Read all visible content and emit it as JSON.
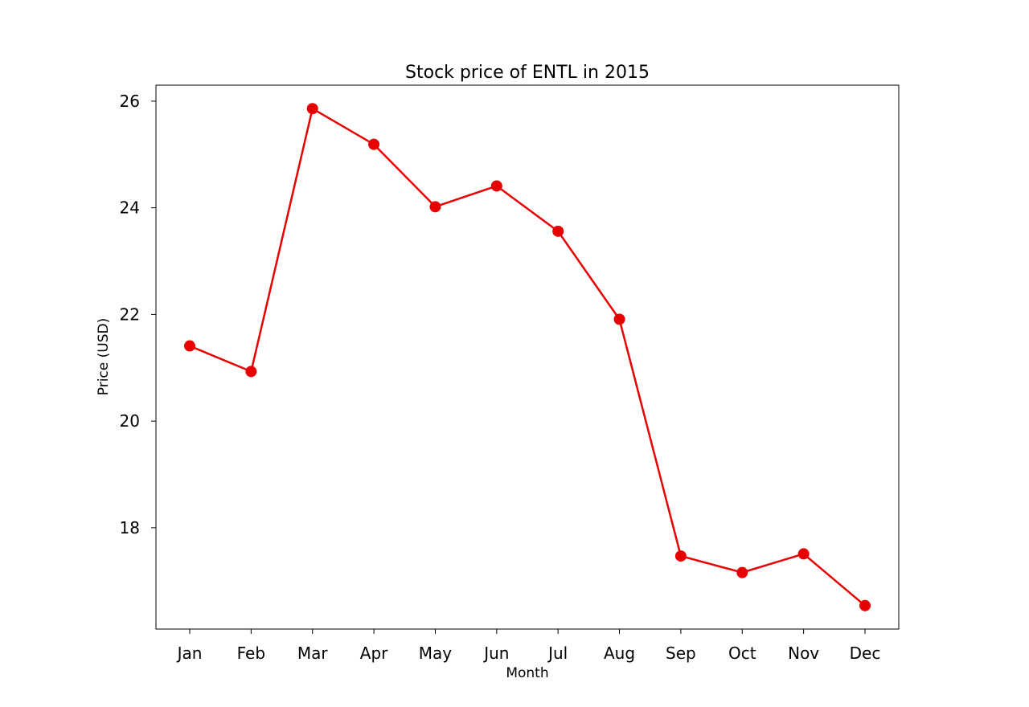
{
  "chart_data": {
    "type": "line",
    "title": "Stock price of ENTL in 2015",
    "xlabel": "Month",
    "ylabel": "Price (USD)",
    "categories": [
      "Jan",
      "Feb",
      "Mar",
      "Apr",
      "May",
      "Jun",
      "Jul",
      "Aug",
      "Sep",
      "Oct",
      "Nov",
      "Dec"
    ],
    "series": [
      {
        "values": [
          21.41,
          20.93,
          25.86,
          25.19,
          24.02,
          24.41,
          23.56,
          21.91,
          17.47,
          17.16,
          17.51,
          16.54
        ],
        "color": "#e80000"
      }
    ],
    "yticks": [
      18,
      20,
      22,
      24,
      26
    ],
    "ylim": [
      16.1,
      26.3
    ],
    "grid": false,
    "legend": "none"
  }
}
